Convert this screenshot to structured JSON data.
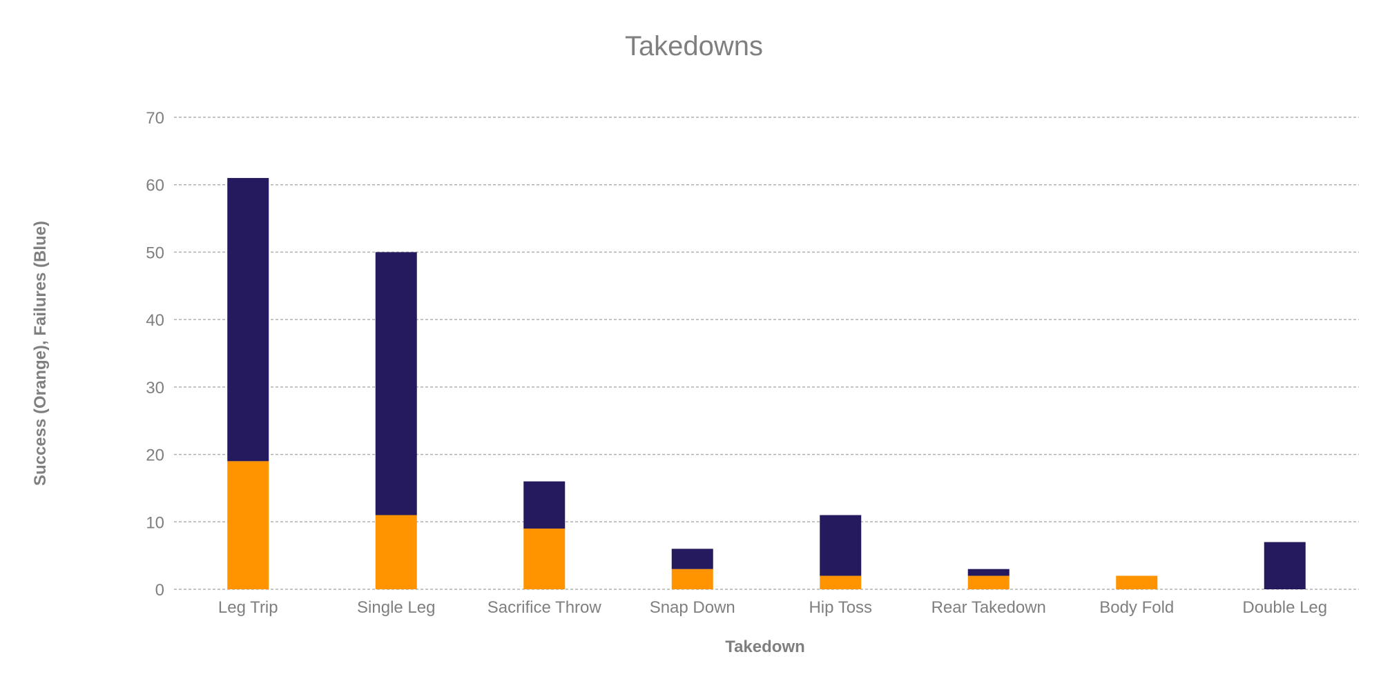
{
  "chart_data": {
    "type": "bar",
    "stacked": true,
    "title": "Takedowns",
    "xlabel": "Takedown",
    "ylabel": "Success (Orange), Failures (Blue)",
    "ylim": [
      0,
      70
    ],
    "yticks": [
      0,
      10,
      20,
      30,
      40,
      50,
      60,
      70
    ],
    "grid": true,
    "categories": [
      "Leg Trip",
      "Single Leg",
      "Sacrifice Throw",
      "Snap Down",
      "Hip Toss",
      "Rear Takedown",
      "Body Fold",
      "Double Leg"
    ],
    "series": [
      {
        "name": "Success",
        "color": "#ff9300",
        "values": [
          19,
          11,
          9,
          3,
          2,
          2,
          2,
          0
        ]
      },
      {
        "name": "Failures",
        "color": "#251a5e",
        "values": [
          42,
          39,
          7,
          3,
          9,
          1,
          0,
          7
        ]
      }
    ]
  }
}
